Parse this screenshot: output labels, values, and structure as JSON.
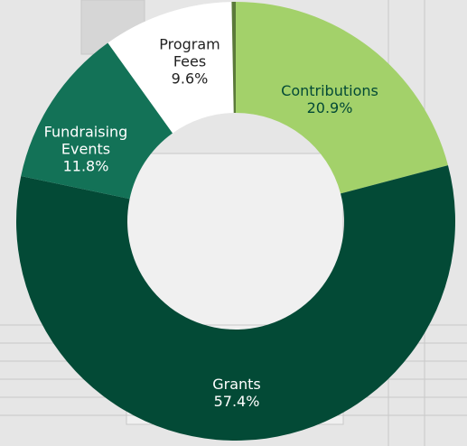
{
  "chart_data": {
    "type": "donut",
    "categories": [
      "Contributions",
      "Grants",
      "Fundraising Events",
      "Program Fees",
      null
    ],
    "values": [
      20.9,
      57.4,
      11.8,
      9.6,
      0.3
    ],
    "value_labels": [
      "20.9%",
      "57.4%",
      "11.8%",
      "9.6%",
      null
    ],
    "colors": [
      "#a3d16a",
      "#034a36",
      "#137257",
      "#ffffff",
      "#5b7a3a"
    ],
    "label_colors": [
      "#034a36",
      "#ffffff",
      "#ffffff",
      "#222222",
      null
    ]
  }
}
